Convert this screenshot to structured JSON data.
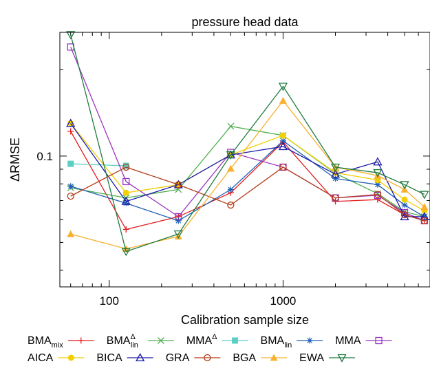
{
  "chart_data": {
    "type": "line",
    "title": "pressure head data",
    "xlabel": "Calibration sample size",
    "ylabel": "ΔRMSE",
    "xscale": "log",
    "yscale": "log",
    "xlim": [
      52,
      7000
    ],
    "ylim": [
      0.035,
      0.27
    ],
    "xticks": [
      {
        "value": 100,
        "label": "100"
      },
      {
        "value": 1000,
        "label": "1000"
      }
    ],
    "yticks": [
      {
        "value": 0.1,
        "label": "0.1"
      }
    ],
    "grid": false,
    "legend_position": "bottom",
    "x": [
      60,
      125,
      250,
      500,
      1000,
      2000,
      3500,
      5000,
      6500
    ],
    "series": [
      {
        "name": "BMA",
        "sub": "mix",
        "sup": "",
        "color": "#e41a1c",
        "marker": "plus",
        "values": [
          0.122,
          0.0555,
          0.0615,
          0.0745,
          0.112,
          0.0695,
          0.0705,
          0.0625,
          0.0595
        ]
      },
      {
        "name": "BMA",
        "sub": "lin",
        "sup": "Δ",
        "color": "#4daf4a",
        "marker": "x",
        "values": [
          0.0775,
          0.0715,
          0.0765,
          0.127,
          0.118,
          0.087,
          0.074,
          0.064,
          0.0615
        ]
      },
      {
        "name": "MMA",
        "sub": "",
        "sup": "Δ",
        "color": "#5ecec4",
        "marker": "fsquare",
        "values": [
          0.094,
          0.0925,
          null,
          null,
          null,
          null,
          null,
          null,
          null
        ]
      },
      {
        "name": "BMA",
        "sub": "lin",
        "sup": "",
        "color": "#1f5fb5",
        "marker": "star",
        "values": [
          0.0785,
          0.0685,
          0.0595,
          0.0765,
          0.113,
          0.0835,
          0.0795,
          0.0675,
          0.0615
        ]
      },
      {
        "name": "MMA",
        "sub": "",
        "sup": "",
        "color": "#9a33c0",
        "marker": "square",
        "values": [
          0.24,
          0.0815,
          0.0615,
          0.103,
          0.0915,
          0.0715,
          0.073,
          0.0635,
          0.0595
        ]
      },
      {
        "name": "AICA",
        "sub": "",
        "sup": "",
        "color": "#f2cf00",
        "marker": "fcircle",
        "values": [
          0.13,
          0.0745,
          0.0795,
          0.101,
          0.118,
          0.0875,
          0.0825,
          0.0705,
          0.0645
        ]
      },
      {
        "name": "BICA",
        "sub": "",
        "sup": "",
        "color": "#1a1aa8",
        "marker": "triangle",
        "values": [
          0.13,
          0.0695,
          0.0795,
          0.101,
          0.108,
          0.0865,
          0.0955,
          0.0615,
          0.0615
        ]
      },
      {
        "name": "GRA",
        "sub": "",
        "sup": "",
        "color": "#b33a16",
        "marker": "circle",
        "values": [
          0.0725,
          0.0915,
          0.0795,
          0.0675,
          0.0915,
          0.0715,
          0.0735,
          0.0625,
          0.0595
        ]
      },
      {
        "name": "BGA",
        "sub": "",
        "sup": "",
        "color": "#f7b02f",
        "marker": "ftriangle",
        "values": [
          0.0535,
          0.0475,
          0.0525,
          0.0905,
          0.156,
          0.0915,
          0.0855,
          0.0765,
          0.0665
        ]
      },
      {
        "name": "EWA",
        "sub": "",
        "sup": "",
        "color": "#1f7a3f",
        "marker": "dtriangle",
        "values": [
          0.265,
          0.0465,
          0.0535,
          0.101,
          0.175,
          0.0915,
          0.0875,
          0.0795,
          0.0735
        ]
      }
    ]
  }
}
